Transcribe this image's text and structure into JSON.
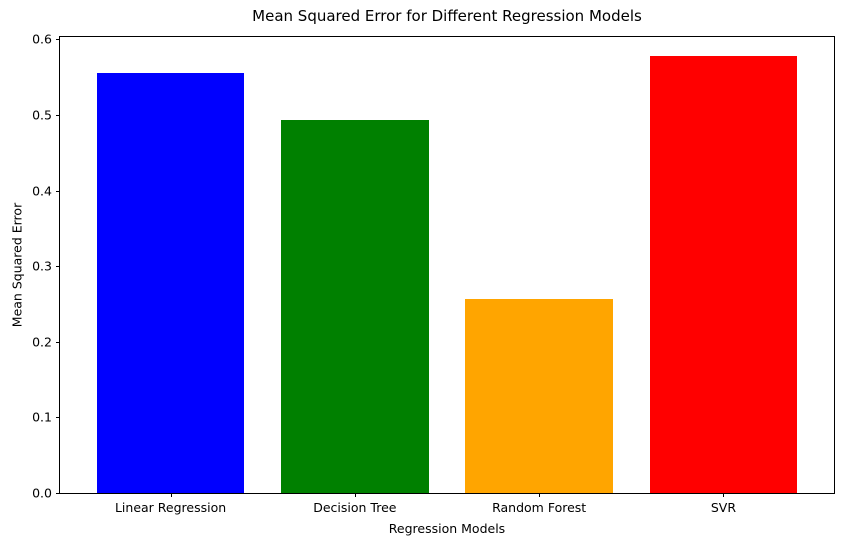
{
  "chart_data": {
    "type": "bar",
    "title": "Mean Squared Error for Different Regression Models",
    "xlabel": "Regression Models",
    "ylabel": "Mean Squared Error",
    "categories": [
      "Linear Regression",
      "Decision Tree",
      "Random Forest",
      "SVR"
    ],
    "values": [
      0.556,
      0.493,
      0.256,
      0.578
    ],
    "colors": [
      "#0000ff",
      "#008000",
      "#ffa500",
      "#ff0000"
    ],
    "yticks": [
      0.0,
      0.1,
      0.2,
      0.3,
      0.4,
      0.5,
      0.6
    ],
    "ytick_labels": [
      "0.0",
      "0.1",
      "0.2",
      "0.3",
      "0.4",
      "0.5",
      "0.6"
    ],
    "ylim": [
      0,
      0.603
    ],
    "xlim": [
      -0.6,
      3.6
    ],
    "bar_width": 0.8,
    "grid": false,
    "legend": false,
    "background_color": "#ffffff",
    "spine_color": "#000000",
    "text_color": "#000000"
  }
}
